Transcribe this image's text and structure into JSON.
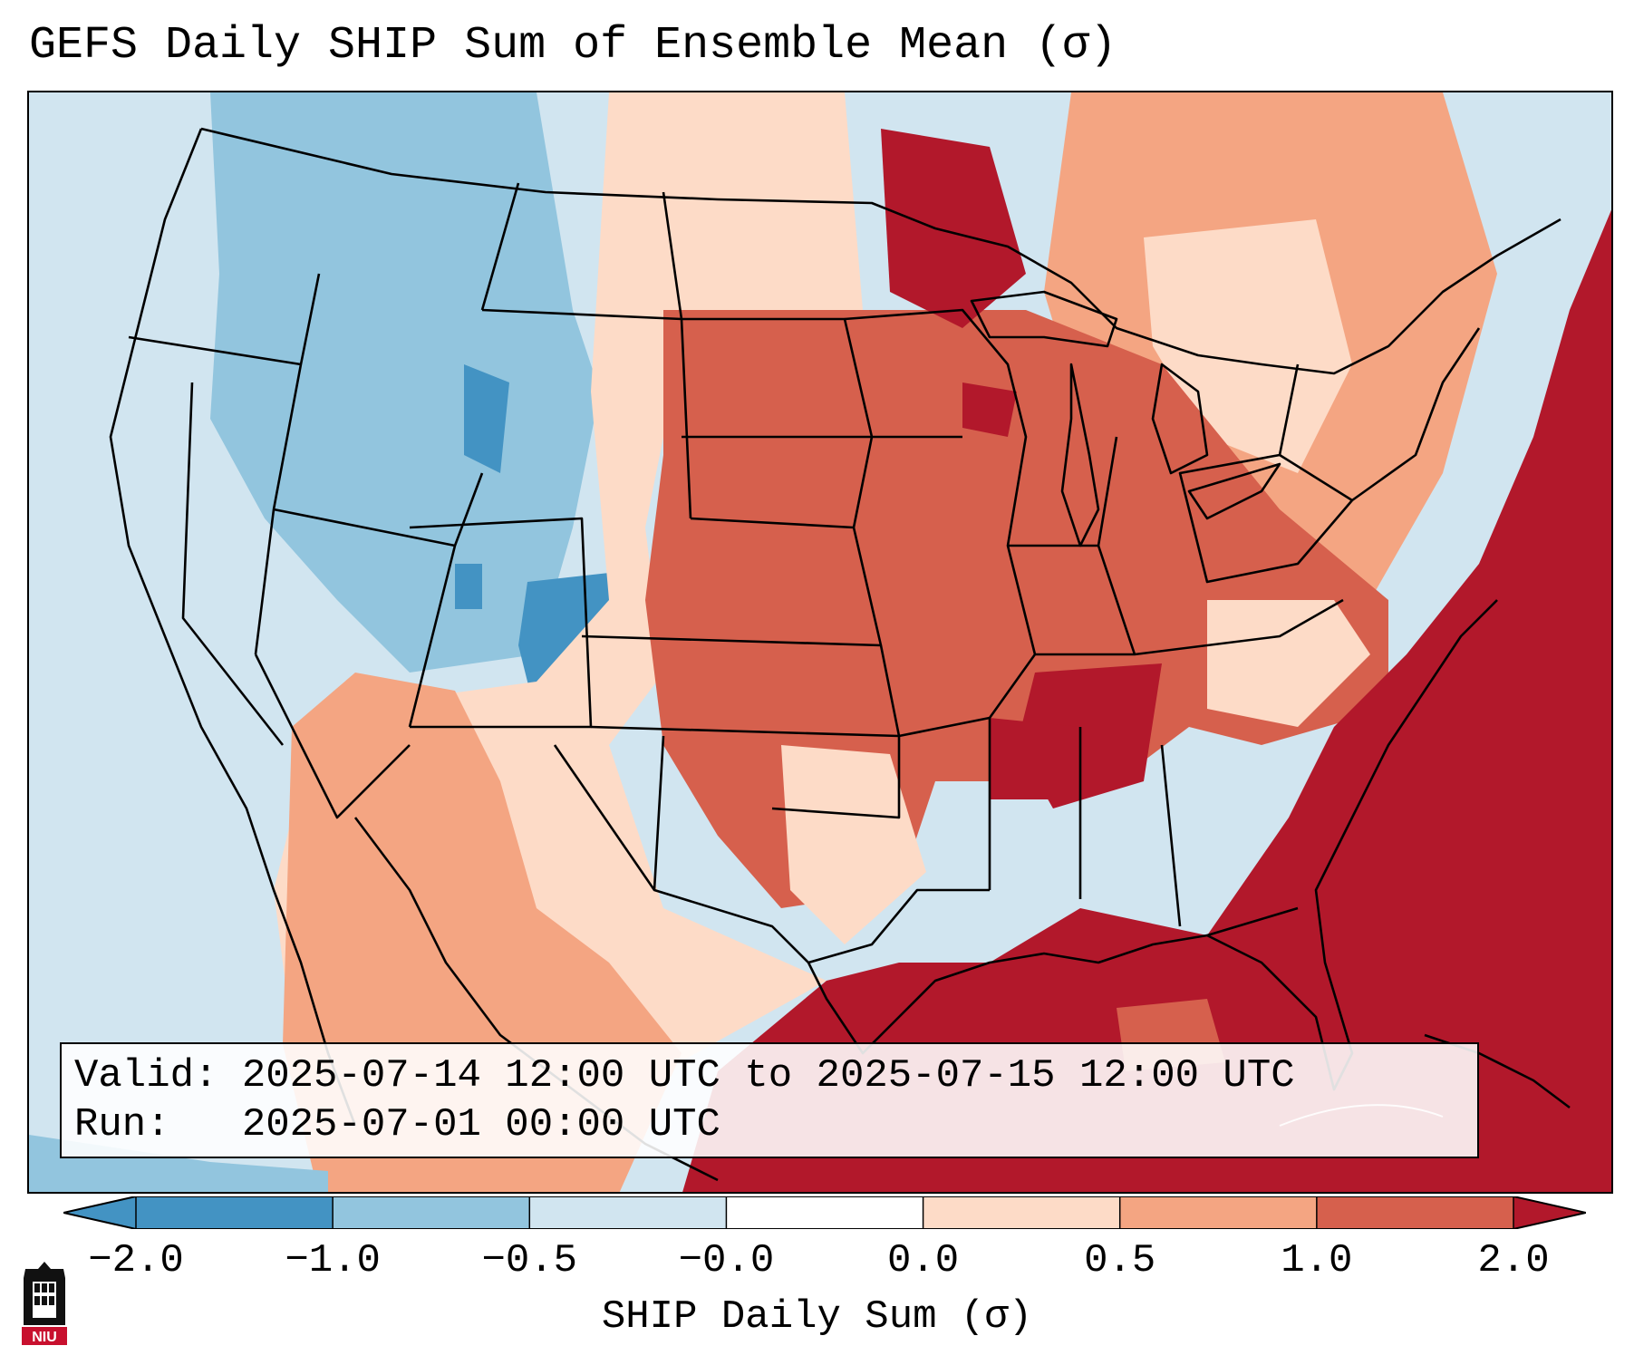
{
  "title": "GEFS Daily SHIP Sum of Ensemble Mean (σ)",
  "info": {
    "valid_label": "Valid:",
    "valid_value": "2025-07-14 12:00 UTC to 2025-07-15 12:00 UTC",
    "run_label": "Run:",
    "run_value": "2025-07-01 00:00 UTC"
  },
  "colorbar": {
    "label": "SHIP Daily Sum (σ)",
    "ticks": [
      "−2.0",
      "−1.0",
      "−0.5",
      "−0.0",
      "0.0",
      "0.5",
      "1.0",
      "2.0"
    ],
    "colors": [
      "#4393c3",
      "#92c5de",
      "#d1e5f0",
      "#ffffff",
      "#fddbc7",
      "#f4a582",
      "#d6604d",
      "#b2182b"
    ],
    "extend": "both"
  },
  "logo": {
    "text": "NIU",
    "icon": "niu-logo-icon"
  },
  "map": {
    "projection": "lambert-conformal",
    "region": "CONUS",
    "palette": {
      "strong_neg": "#4393c3",
      "neg": "#92c5de",
      "weak_neg": "#d1e5f0",
      "weak_pos": "#fddbc7",
      "pos": "#f4a582",
      "strong_pos": "#d6604d",
      "very_strong_pos": "#b2182b"
    }
  }
}
